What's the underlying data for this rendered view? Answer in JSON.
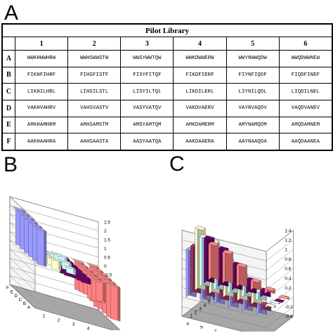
{
  "panels": {
    "a": "A",
    "b": "B",
    "c": "C"
  },
  "table": {
    "title": "Pilot Library",
    "columns": [
      "1",
      "2",
      "3",
      "4",
      "5",
      "6"
    ],
    "rows": [
      {
        "label": "A",
        "cells": [
          "WWKHWWHRW",
          "WWHSWWSTW",
          "WWSYWWTQW",
          "WWKDWWERW",
          "WWYNWWQDW",
          "WWQDWWNEW"
        ]
      },
      {
        "label": "B",
        "cells": [
          "FIKHFIHRF",
          "FIHSFISTF",
          "FISYFITQF",
          "FIKDFIERF",
          "FIYNFIQDF",
          "FIQDFINEF"
        ]
      },
      {
        "label": "C",
        "cells": [
          "LIKHILHRL",
          "LIHSILSTL",
          "LISYILTQL",
          "LIKDILERL",
          "LIYNILQDL",
          "LIQDILNEL"
        ]
      },
      {
        "label": "D",
        "cells": [
          "VAKHVAHRV",
          "VAHSVASTV",
          "VASYVATQV",
          "VAKDVAERV",
          "VAYNVAQDV",
          "VAQDVANEV"
        ]
      },
      {
        "label": "E",
        "cells": [
          "AMKHAMHRM",
          "AMHSAMSTM",
          "AMSYAMTQM",
          "AMKDAMERM",
          "AMYNAMQDM",
          "AMQDAMNEM"
        ]
      },
      {
        "label": "F",
        "cells": [
          "AAKHAAHRA",
          "AAHSAASTA",
          "AASYAATQA",
          "AAKDAAERA",
          "AAYNAAQDA",
          "AAQDAANEA"
        ]
      }
    ]
  },
  "chart_data": [
    {
      "type": "bar",
      "style": "3d",
      "rows": [
        "A",
        "B",
        "C",
        "D",
        "E",
        "F"
      ],
      "columns": [
        "1",
        "2",
        "3",
        "4",
        "5",
        "6"
      ],
      "zlim": [
        -2.5,
        2.5
      ],
      "zticks": [
        "2.5",
        "2",
        "1.5",
        "1",
        "0.5",
        "0",
        "-0.5",
        "-1",
        "-1.5",
        "-2",
        "-2.5"
      ],
      "values": [
        [
          2.0,
          0.5,
          0.3,
          -0.3,
          -1.1,
          -1.9
        ],
        [
          2.0,
          0.4,
          0.4,
          -0.4,
          -1.3,
          -2.0
        ],
        [
          2.0,
          0.3,
          0.5,
          -0.5,
          -1.4,
          -2.0
        ],
        [
          2.0,
          0.2,
          0.4,
          -0.6,
          -1.4,
          -2.0
        ],
        [
          2.0,
          0.1,
          0.2,
          -0.8,
          -1.5,
          -2.1
        ],
        [
          2.0,
          -0.1,
          0.0,
          -0.9,
          -1.6,
          -2.0
        ]
      ],
      "colors": {
        "col1": "#9999ff",
        "col2": "#ffffcc",
        "col3": "#ccffff",
        "col4": "#660066",
        "col5": "#ff8080",
        "col6": "#ff8080"
      }
    },
    {
      "type": "bar",
      "style": "3d",
      "rows": [
        "a",
        "b",
        "c",
        "d",
        "e",
        "f"
      ],
      "columns": [
        "1",
        "2",
        "3",
        "4",
        "5",
        "6"
      ],
      "zlim": [
        -0.4,
        1.4
      ],
      "zticks": [
        "1.4",
        "1.2",
        "1",
        "0.8",
        "0.6",
        "0.4",
        "0.2",
        "0",
        "-0.2",
        "-0.4"
      ],
      "values": [
        [
          1.0,
          1.0,
          1.3,
          1.05,
          0.95,
          0.75
        ],
        [
          0.95,
          0.9,
          1.1,
          0.9,
          0.8,
          0.65
        ],
        [
          0.7,
          0.75,
          0.8,
          0.6,
          0.55,
          0.45
        ],
        [
          0.5,
          0.55,
          0.55,
          0.35,
          0.3,
          0.2
        ],
        [
          0.35,
          0.4,
          0.35,
          0.2,
          0.15,
          0.1
        ],
        [
          0.25,
          0.15,
          0.05,
          0.05,
          0.0,
          -0.05
        ]
      ],
      "colors": {
        "col1": "#9999ff",
        "col2": "#993366",
        "col3": "#ffffcc",
        "col4": "#ccffff",
        "col5": "#660066",
        "col6": "#ff8080"
      }
    }
  ]
}
